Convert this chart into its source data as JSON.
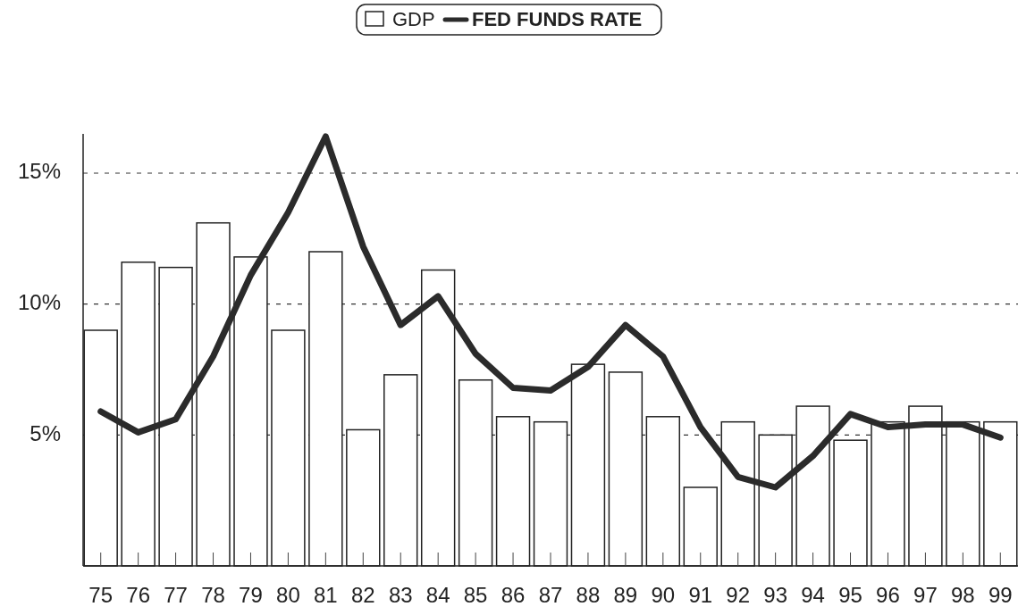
{
  "chart_data": {
    "type": "bar",
    "categories": [
      "75",
      "76",
      "77",
      "78",
      "79",
      "80",
      "81",
      "82",
      "83",
      "84",
      "85",
      "86",
      "87",
      "88",
      "89",
      "90",
      "91",
      "92",
      "93",
      "94",
      "95",
      "96",
      "97",
      "98",
      "99"
    ],
    "series": [
      {
        "name": "GDP",
        "color": "#ffffff",
        "values": [
          9.0,
          11.6,
          11.4,
          13.1,
          11.8,
          9.0,
          12.0,
          5.2,
          7.3,
          11.3,
          7.1,
          5.7,
          5.5,
          7.7,
          7.4,
          5.7,
          3.0,
          5.5,
          5.0,
          6.1,
          4.8,
          5.5,
          6.1,
          5.5,
          5.5
        ]
      },
      {
        "name": "FED FUNDS RATE",
        "type": "line",
        "color": "#2b2b2b",
        "values": [
          5.9,
          5.1,
          5.6,
          8.0,
          11.1,
          13.5,
          16.4,
          12.2,
          9.2,
          10.3,
          8.1,
          6.8,
          6.7,
          7.6,
          9.2,
          8.0,
          5.3,
          3.4,
          3.0,
          4.2,
          5.8,
          5.3,
          5.4,
          5.4,
          4.9
        ]
      }
    ],
    "ylim": [
      0,
      16.5
    ],
    "yticks": [
      {
        "value": 5,
        "label": "5%"
      },
      {
        "value": 10,
        "label": "10%"
      },
      {
        "value": 15,
        "label": "15%"
      }
    ],
    "grid": "y",
    "legend": "top",
    "line_style": "solid"
  }
}
